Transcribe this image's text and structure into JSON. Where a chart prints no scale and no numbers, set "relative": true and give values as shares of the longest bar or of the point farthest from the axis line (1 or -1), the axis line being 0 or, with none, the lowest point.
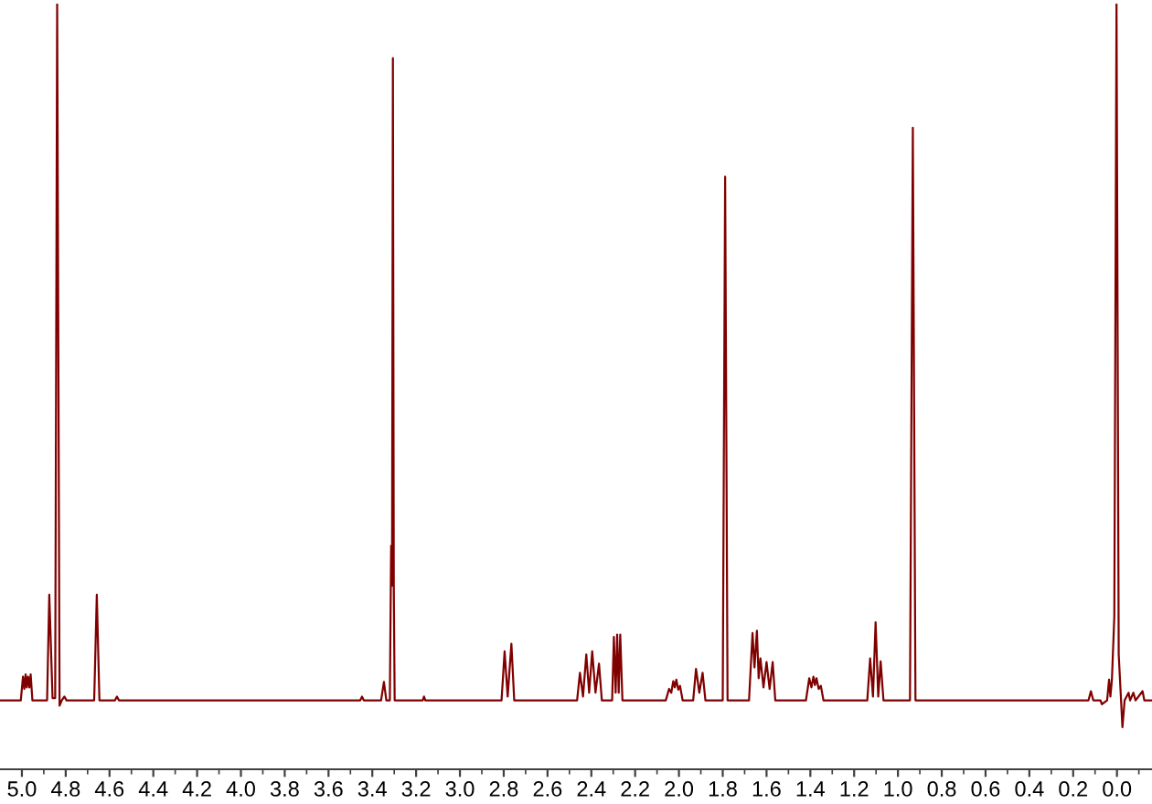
{
  "chart_data": {
    "type": "line",
    "relative": true,
    "x": [
      5.1,
      5.005,
      4.995,
      4.989,
      4.983,
      4.978,
      4.972,
      4.966,
      4.96,
      4.952,
      4.885,
      4.875,
      4.86,
      4.848,
      4.839,
      4.828,
      4.818,
      4.806,
      4.796,
      4.67,
      4.658,
      4.646,
      4.575,
      4.566,
      4.557,
      3.455,
      3.447,
      3.439,
      3.36,
      3.347,
      3.336,
      3.32,
      3.314,
      3.31,
      3.306,
      3.302,
      3.298,
      3.17,
      3.164,
      3.158,
      2.81,
      2.796,
      2.782,
      2.765,
      2.752,
      2.465,
      2.452,
      2.438,
      2.423,
      2.41,
      2.396,
      2.381,
      2.365,
      2.352,
      2.305,
      2.297,
      2.289,
      2.282,
      2.275,
      2.268,
      2.258,
      2.06,
      2.045,
      2.035,
      2.026,
      2.019,
      2.012,
      2.003,
      1.995,
      1.983,
      1.935,
      1.922,
      1.907,
      1.892,
      1.879,
      1.8,
      1.789,
      1.778,
      1.68,
      1.664,
      1.655,
      1.644,
      1.636,
      1.628,
      1.614,
      1.6,
      1.586,
      1.572,
      1.56,
      1.42,
      1.405,
      1.395,
      1.386,
      1.379,
      1.372,
      1.362,
      1.352,
      1.34,
      1.14,
      1.127,
      1.114,
      1.102,
      1.09,
      1.079,
      1.066,
      0.945,
      0.932,
      0.92,
      0.13,
      0.119,
      0.108,
      0.075,
      0.069,
      0.045,
      0.036,
      0.03,
      0.023,
      0.012,
      0.002,
      -0.008,
      -0.025,
      -0.035,
      -0.053,
      -0.06,
      -0.075,
      -0.085,
      -0.117,
      -0.125,
      -0.16
    ],
    "series": [
      {
        "color": "#800000",
        "values": [
          0.09,
          0.09,
          0.121,
          0.105,
          0.124,
          0.107,
          0.121,
          0.107,
          0.124,
          0.09,
          0.09,
          0.228,
          0.093,
          0.093,
          1,
          0.083,
          0.09,
          0.095,
          0.09,
          0.09,
          0.228,
          0.09,
          0.09,
          0.095,
          0.09,
          0.09,
          0.095,
          0.09,
          0.09,
          0.114,
          0.09,
          0.09,
          0.292,
          0.24,
          0.929,
          0.24,
          0.09,
          0.09,
          0.095,
          0.09,
          0.09,
          0.154,
          0.095,
          0.164,
          0.09,
          0.09,
          0.126,
          0.095,
          0.15,
          0.1,
          0.154,
          0.1,
          0.138,
          0.09,
          0.09,
          0.173,
          0.1,
          0.176,
          0.1,
          0.176,
          0.09,
          0.09,
          0.105,
          0.1,
          0.115,
          0.107,
          0.117,
          0.104,
          0.109,
          0.09,
          0.09,
          0.131,
          0.1,
          0.126,
          0.09,
          0.09,
          0.774,
          0.09,
          0.09,
          0.178,
          0.133,
          0.181,
          0.119,
          0.145,
          0.107,
          0.14,
          0.105,
          0.14,
          0.09,
          0.09,
          0.119,
          0.107,
          0.121,
          0.11,
          0.119,
          0.105,
          0.109,
          0.09,
          0.09,
          0.145,
          0.095,
          0.192,
          0.095,
          0.141,
          0.09,
          0.09,
          0.838,
          0.09,
          0.09,
          0.102,
          0.09,
          0.09,
          0.085,
          0.09,
          0.117,
          0.095,
          0.117,
          0.2,
          1,
          0.15,
          0.055,
          0.09,
          0.1,
          0.09,
          0.1,
          0.09,
          0.102,
          0.09,
          0.09
        ]
      }
    ],
    "xlim": [
      5.1,
      -0.16
    ],
    "xticks": [
      {
        "value": 5.0,
        "label": "5.0"
      },
      {
        "value": 4.9,
        "label": null
      },
      {
        "value": 4.8,
        "label": "4.8"
      },
      {
        "value": 4.7,
        "label": null
      },
      {
        "value": 4.6,
        "label": "4.6"
      },
      {
        "value": 4.5,
        "label": null
      },
      {
        "value": 4.4,
        "label": "4.4"
      },
      {
        "value": 4.3,
        "label": null
      },
      {
        "value": 4.2,
        "label": "4.2"
      },
      {
        "value": 4.1,
        "label": null
      },
      {
        "value": 4.0,
        "label": "4.0"
      },
      {
        "value": 3.9,
        "label": null
      },
      {
        "value": 3.8,
        "label": "3.8"
      },
      {
        "value": 3.7,
        "label": null
      },
      {
        "value": 3.6,
        "label": "3.6"
      },
      {
        "value": 3.5,
        "label": null
      },
      {
        "value": 3.4,
        "label": "3.4"
      },
      {
        "value": 3.3,
        "label": null
      },
      {
        "value": 3.2,
        "label": "3.2"
      },
      {
        "value": 3.1,
        "label": null
      },
      {
        "value": 3.0,
        "label": "3.0"
      },
      {
        "value": 2.9,
        "label": null
      },
      {
        "value": 2.8,
        "label": "2.8"
      },
      {
        "value": 2.7,
        "label": null
      },
      {
        "value": 2.6,
        "label": "2.6"
      },
      {
        "value": 2.5,
        "label": null
      },
      {
        "value": 2.4,
        "label": "2.4"
      },
      {
        "value": 2.3,
        "label": null
      },
      {
        "value": 2.2,
        "label": "2.2"
      },
      {
        "value": 2.1,
        "label": null
      },
      {
        "value": 2.0,
        "label": "2.0"
      },
      {
        "value": 1.9,
        "label": null
      },
      {
        "value": 1.8,
        "label": "1.8"
      },
      {
        "value": 1.7,
        "label": null
      },
      {
        "value": 1.6,
        "label": "1.6"
      },
      {
        "value": 1.5,
        "label": null
      },
      {
        "value": 1.4,
        "label": "1.4"
      },
      {
        "value": 1.3,
        "label": null
      },
      {
        "value": 1.2,
        "label": "1.2"
      },
      {
        "value": 1.1,
        "label": null
      },
      {
        "value": 1.0,
        "label": "1.0"
      },
      {
        "value": 0.9,
        "label": null
      },
      {
        "value": 0.8,
        "label": "0.8"
      },
      {
        "value": 0.7,
        "label": null
      },
      {
        "value": 0.6,
        "label": "0.6"
      },
      {
        "value": 0.5,
        "label": null
      },
      {
        "value": 0.4,
        "label": "0.4"
      },
      {
        "value": 0.3,
        "label": null
      },
      {
        "value": 0.2,
        "label": "0.2"
      },
      {
        "value": 0.1,
        "label": null
      },
      {
        "value": 0.0,
        "label": "0.0"
      },
      {
        "value": -0.1,
        "label": null
      }
    ]
  }
}
